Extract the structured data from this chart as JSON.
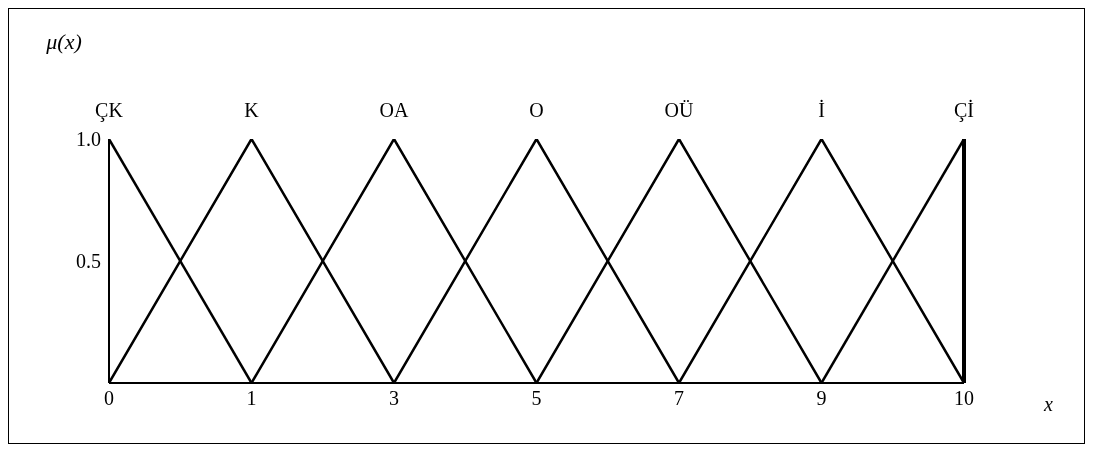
{
  "chart_data": {
    "type": "line",
    "xlabel": "x",
    "ylabel": "μ(x)",
    "categories": [
      "0",
      "1",
      "3",
      "5",
      "7",
      "9",
      "10"
    ],
    "series": [
      {
        "name": "ÇK",
        "color": "#000000",
        "values": [
          1,
          0,
          null,
          null,
          null,
          null,
          null
        ]
      },
      {
        "name": "K",
        "color": "#000000",
        "values": [
          0,
          1,
          0,
          null,
          null,
          null,
          null
        ]
      },
      {
        "name": "OA",
        "color": "#000000",
        "values": [
          null,
          0,
          1,
          0,
          null,
          null,
          null
        ]
      },
      {
        "name": "O",
        "color": "#000000",
        "values": [
          null,
          null,
          0,
          1,
          0,
          null,
          null
        ]
      },
      {
        "name": "OÜ",
        "color": "#000000",
        "values": [
          null,
          null,
          null,
          0,
          1,
          0,
          null
        ]
      },
      {
        "name": "İ",
        "color": "#000000",
        "values": [
          null,
          null,
          null,
          null,
          0,
          1,
          0
        ]
      },
      {
        "name": "Çİ",
        "color": "#000000",
        "values": [
          null,
          null,
          null,
          null,
          null,
          0,
          1
        ]
      }
    ],
    "ylim": [
      0,
      1
    ],
    "yticks": [
      0.5,
      {
        "value": 1,
        "label": "1.0"
      }
    ],
    "ref_lines": [
      {
        "axis": "x",
        "value": "10",
        "color": "#000000"
      }
    ],
    "grid": false,
    "legend": false,
    "marker": "none",
    "line_style": "solid"
  }
}
